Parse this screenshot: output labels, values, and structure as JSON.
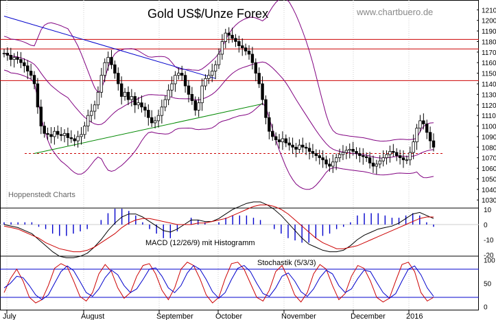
{
  "title": "Gold US$/Unze Forex",
  "watermark": "www.chartbuero.de",
  "source_label": "Hoppenstedt Charts",
  "colors": {
    "price": "#000000",
    "bollinger": "#800080",
    "trend_down": "#0000cc",
    "trend_up": "#008800",
    "resistance": "#cc0000",
    "support_dashed": "#cc0000",
    "macd_line": "#000000",
    "signal_line": "#cc0000",
    "histogram": "#0000cc",
    "stoch_k": "#cc0000",
    "stoch_d": "#0000cc",
    "stoch_levels": "#0000cc",
    "grid": "#cccccc"
  },
  "chart_data": [
    {
      "type": "candlestick",
      "title": "Gold US$/Unze Forex",
      "ylim": [
        1023,
        1218
      ],
      "y_ticks": [
        1030,
        1040,
        1050,
        1060,
        1070,
        1080,
        1090,
        1100,
        1110,
        1120,
        1130,
        1140,
        1150,
        1160,
        1170,
        1180,
        1190,
        1200,
        1210
      ],
      "x_labels": [
        "July",
        "August",
        "September",
        "October",
        "November",
        "December",
        "2016"
      ],
      "horizontal_lines": [
        1182,
        1173,
        1143
      ],
      "support_line": 1074,
      "trend_lines": [
        {
          "name": "down",
          "from": [
            0,
            1204
          ],
          "to": [
            63,
            1145
          ]
        },
        {
          "name": "up",
          "from": [
            9,
            1074
          ],
          "to": [
            77,
            1121
          ]
        }
      ],
      "close": [
        1169,
        1167,
        1163,
        1165,
        1163,
        1160,
        1157,
        1152,
        1148,
        1140,
        1118,
        1100,
        1093,
        1092,
        1090,
        1095,
        1092,
        1091,
        1093,
        1089,
        1088,
        1086,
        1090,
        1092,
        1100,
        1110,
        1114,
        1120,
        1132,
        1148,
        1160,
        1165,
        1158,
        1150,
        1140,
        1128,
        1132,
        1125,
        1128,
        1120,
        1122,
        1118,
        1115,
        1108,
        1103,
        1105,
        1110,
        1118,
        1125,
        1134,
        1140,
        1148,
        1150,
        1148,
        1138,
        1130,
        1124,
        1115,
        1122,
        1138,
        1145,
        1148,
        1152,
        1158,
        1168,
        1180,
        1188,
        1186,
        1183,
        1180,
        1176,
        1174,
        1171,
        1168,
        1160,
        1150,
        1140,
        1125,
        1108,
        1095,
        1090,
        1087,
        1085,
        1088,
        1084,
        1082,
        1080,
        1078,
        1082,
        1080,
        1079,
        1076,
        1074,
        1072,
        1070,
        1068,
        1064,
        1062,
        1066,
        1070,
        1073,
        1075,
        1077,
        1078,
        1076,
        1074,
        1072,
        1071,
        1070,
        1065,
        1062,
        1064,
        1067,
        1070,
        1073,
        1076,
        1075,
        1072,
        1070,
        1068,
        1068,
        1075,
        1085,
        1098,
        1105,
        1102,
        1094,
        1086,
        1080
      ]
    },
    {
      "type": "line",
      "title": "MACD (12/26/9) mit Histogramm",
      "ylim": [
        -20,
        10
      ],
      "y_ticks": [
        -20,
        -10,
        0,
        10
      ],
      "series": [
        {
          "name": "MACD",
          "values": [
            0,
            -1,
            -2,
            -4,
            -6,
            -10,
            -14,
            -18,
            -21,
            -22,
            -22,
            -21,
            -19,
            -15,
            -10,
            -4,
            1,
            5,
            7,
            7,
            5,
            2,
            -1,
            -4,
            -5,
            -3,
            0,
            3,
            3,
            2,
            2,
            4,
            7,
            10,
            12,
            14,
            15,
            15,
            13,
            10,
            6,
            1,
            -4,
            -9,
            -13,
            -15,
            -17,
            -18,
            -18,
            -17,
            -14,
            -10,
            -7,
            -5,
            -3,
            -2,
            -1,
            1,
            4,
            7,
            8,
            6,
            4
          ]
        },
        {
          "name": "Signal",
          "values": [
            -1,
            -2,
            -3,
            -5,
            -7,
            -9,
            -12,
            -14,
            -16,
            -17,
            -18,
            -18,
            -17,
            -15,
            -12,
            -9,
            -6,
            -2,
            1,
            3,
            4,
            4,
            3,
            2,
            1,
            0,
            0,
            0,
            1,
            1,
            2,
            3,
            4,
            6,
            8,
            10,
            12,
            13,
            13,
            12,
            10,
            7,
            3,
            -1,
            -5,
            -9,
            -12,
            -14,
            -16,
            -16,
            -15,
            -14,
            -12,
            -10,
            -8,
            -6,
            -4,
            -2,
            0,
            2,
            4,
            5,
            5
          ]
        }
      ]
    },
    {
      "type": "line",
      "title": "Stochastik (5/3/3)",
      "ylim": [
        -5,
        105
      ],
      "y_ticks": [
        0,
        50,
        100
      ],
      "levels": [
        80,
        20
      ],
      "series": [
        {
          "name": "%K",
          "values": [
            30,
            60,
            80,
            55,
            20,
            8,
            15,
            45,
            82,
            92,
            85,
            55,
            22,
            12,
            30,
            70,
            90,
            75,
            40,
            18,
            30,
            65,
            88,
            92,
            70,
            35,
            15,
            40,
            80,
            95,
            88,
            60,
            25,
            8,
            20,
            60,
            92,
            95,
            80,
            50,
            20,
            12,
            35,
            75,
            88,
            60,
            25,
            10,
            30,
            70,
            90,
            80,
            45,
            15,
            28,
            65,
            88,
            82,
            55,
            20,
            10,
            18,
            55,
            90,
            95,
            75,
            30,
            12,
            20
          ]
        },
        {
          "name": "%D",
          "values": [
            40,
            50,
            65,
            62,
            45,
            25,
            15,
            25,
            50,
            75,
            87,
            77,
            54,
            30,
            22,
            38,
            62,
            78,
            68,
            45,
            30,
            38,
            58,
            80,
            83,
            65,
            40,
            30,
            45,
            72,
            88,
            80,
            58,
            32,
            18,
            30,
            58,
            82,
            88,
            75,
            50,
            28,
            22,
            40,
            65,
            72,
            55,
            32,
            22,
            38,
            62,
            78,
            70,
            45,
            30,
            38,
            60,
            78,
            75,
            52,
            30,
            18,
            28,
            55,
            80,
            87,
            68,
            40,
            22
          ]
        }
      ]
    }
  ]
}
